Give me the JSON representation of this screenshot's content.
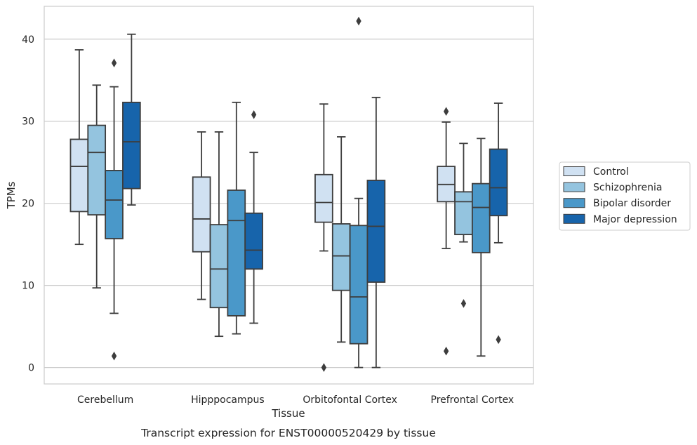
{
  "chart_data": {
    "type": "boxplot",
    "xlabel": "Tissue",
    "ylabel": "TPMs",
    "caption": "Transcript expression for ENST00000520429 by tissue",
    "categories": [
      "Cerebellum",
      "Hipppocampus",
      "Orbitofontal Cortex",
      "Prefrontal Cortex"
    ],
    "ylim": [
      -2,
      44
    ],
    "yticks": [
      0,
      10,
      20,
      30,
      40
    ],
    "grid": "horizontal",
    "legend_position": "right",
    "series": [
      {
        "name": "Control",
        "color": "#d0e1f2",
        "boxes": [
          {
            "whislo": 15.0,
            "q1": 19.0,
            "med": 24.5,
            "q3": 27.8,
            "whishi": 38.7,
            "fliers": []
          },
          {
            "whislo": 8.3,
            "q1": 14.1,
            "med": 18.1,
            "q3": 23.2,
            "whishi": 28.7,
            "fliers": []
          },
          {
            "whislo": 14.2,
            "q1": 17.7,
            "med": 20.1,
            "q3": 23.5,
            "whishi": 32.1,
            "fliers": [
              0.0
            ]
          },
          {
            "whislo": 14.5,
            "q1": 20.2,
            "med": 22.3,
            "q3": 24.5,
            "whishi": 29.9,
            "fliers": [
              31.2,
              2.0
            ]
          }
        ]
      },
      {
        "name": "Schizophrenia",
        "color": "#94c4df",
        "boxes": [
          {
            "whislo": 9.7,
            "q1": 18.6,
            "med": 26.2,
            "q3": 29.5,
            "whishi": 34.4,
            "fliers": []
          },
          {
            "whislo": 3.8,
            "q1": 7.3,
            "med": 12.0,
            "q3": 17.4,
            "whishi": 28.7,
            "fliers": []
          },
          {
            "whislo": 3.1,
            "q1": 9.4,
            "med": 13.6,
            "q3": 17.5,
            "whishi": 28.1,
            "fliers": []
          },
          {
            "whislo": 15.3,
            "q1": 16.2,
            "med": 20.2,
            "q3": 21.4,
            "whishi": 27.3,
            "fliers": [
              7.8
            ]
          }
        ]
      },
      {
        "name": "Bipolar disorder",
        "color": "#4a98c9",
        "boxes": [
          {
            "whislo": 6.6,
            "q1": 15.7,
            "med": 20.4,
            "q3": 24.0,
            "whishi": 34.2,
            "fliers": [
              37.1,
              1.4
            ]
          },
          {
            "whislo": 4.1,
            "q1": 6.3,
            "med": 17.9,
            "q3": 21.6,
            "whishi": 32.3,
            "fliers": []
          },
          {
            "whislo": 0.0,
            "q1": 2.9,
            "med": 8.6,
            "q3": 17.3,
            "whishi": 20.6,
            "fliers": [
              42.2
            ]
          },
          {
            "whislo": 1.4,
            "q1": 14.0,
            "med": 19.5,
            "q3": 22.4,
            "whishi": 27.9,
            "fliers": []
          }
        ]
      },
      {
        "name": "Major depression",
        "color": "#1764ab",
        "boxes": [
          {
            "whislo": 19.8,
            "q1": 21.8,
            "med": 27.5,
            "q3": 32.3,
            "whishi": 40.6,
            "fliers": []
          },
          {
            "whislo": 5.4,
            "q1": 12.0,
            "med": 14.3,
            "q3": 18.8,
            "whishi": 26.2,
            "fliers": [
              30.8
            ]
          },
          {
            "whislo": 0.0,
            "q1": 10.4,
            "med": 17.2,
            "q3": 22.8,
            "whishi": 32.9,
            "fliers": []
          },
          {
            "whislo": 15.2,
            "q1": 18.5,
            "med": 21.9,
            "q3": 26.6,
            "whishi": 32.2,
            "fliers": [
              3.4
            ]
          }
        ]
      }
    ]
  }
}
